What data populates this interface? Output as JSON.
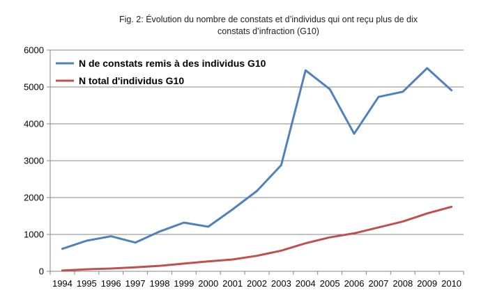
{
  "caption": {
    "line1": "Fig. 2: Évolution du nombre de constats et d’individus qui ont reçu plus de dix",
    "line2": "constats d’infraction (G10)"
  },
  "chart_data": {
    "type": "line",
    "x": [
      1994,
      1995,
      1996,
      1997,
      1998,
      1999,
      2000,
      2001,
      2002,
      2003,
      2004,
      2005,
      2006,
      2007,
      2008,
      2009,
      2010
    ],
    "x_tick_labels": [
      "1994",
      "1995",
      "1996",
      "1997",
      "1998",
      "1999",
      "2000",
      "2001",
      "2002",
      "2003",
      "2004",
      "2005",
      "2006",
      "2007",
      "2008",
      "2009",
      "2010"
    ],
    "y_ticks": [
      0,
      1000,
      2000,
      3000,
      4000,
      5000,
      6000
    ],
    "y_tick_labels": [
      "0",
      "1000",
      "2000",
      "3000",
      "4000",
      "5000",
      "6000"
    ],
    "ylim": [
      0,
      6000
    ],
    "grid": "horizontal",
    "legend_position": "top-left",
    "series": [
      {
        "name": "N de constats remis à des individus G10",
        "color": "#4f81bd",
        "values": [
          610,
          830,
          950,
          780,
          1080,
          1320,
          1210,
          1680,
          2180,
          2880,
          5450,
          4940,
          3730,
          4730,
          4870,
          5510,
          4910
        ]
      },
      {
        "name": "N total d'individus G10",
        "color": "#c0504d",
        "values": [
          20,
          55,
          75,
          110,
          150,
          210,
          270,
          320,
          420,
          560,
          760,
          920,
          1030,
          1190,
          1350,
          1570,
          1750
        ]
      }
    ]
  }
}
